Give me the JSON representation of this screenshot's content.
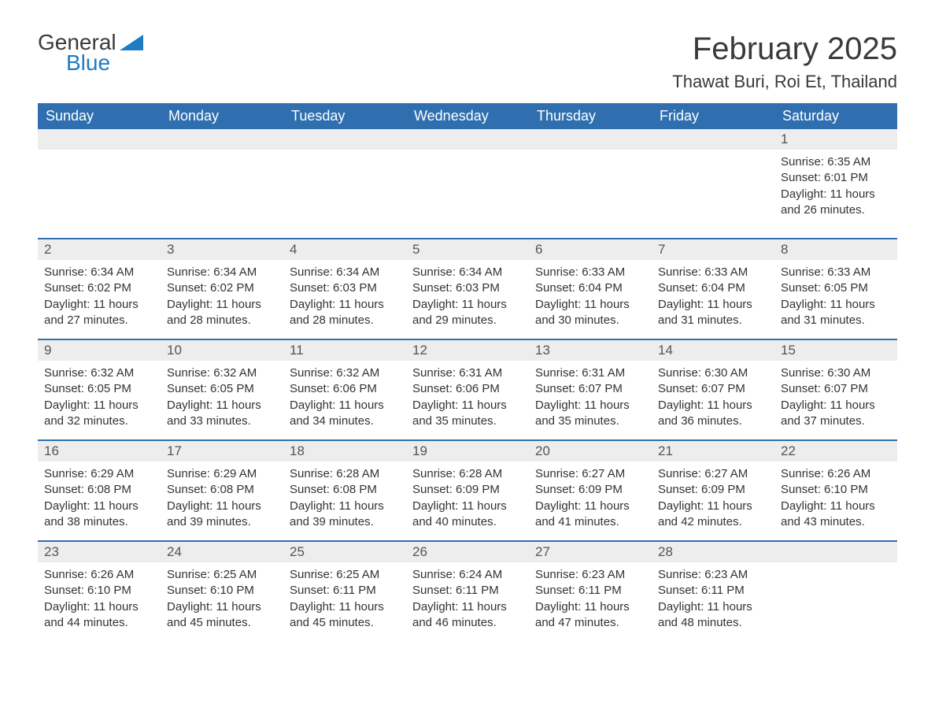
{
  "brand": {
    "line1": "General",
    "line2": "Blue",
    "accent_color": "#1f7bc2"
  },
  "title": "February 2025",
  "location": "Thawat Buri, Roi Et, Thailand",
  "colors": {
    "header_bg": "#2f6fb0",
    "header_text": "#ffffff",
    "row_separator": "#2f6fb0",
    "daynum_bg": "#ededed",
    "body_text": "#333333",
    "page_bg": "#ffffff"
  },
  "typography": {
    "month_title_size_pt": 30,
    "location_size_pt": 16,
    "dayname_size_pt": 14,
    "daynum_size_pt": 13,
    "cell_size_pt": 11
  },
  "day_names": [
    "Sunday",
    "Monday",
    "Tuesday",
    "Wednesday",
    "Thursday",
    "Friday",
    "Saturday"
  ],
  "labels": {
    "sunrise": "Sunrise:",
    "sunset": "Sunset:",
    "daylight": "Daylight:"
  },
  "layout": {
    "columns": 7,
    "weeks": 5,
    "first_day_column_index": 6,
    "days_in_month": 28
  },
  "days": [
    {
      "n": 1,
      "sunrise": "6:35 AM",
      "sunset": "6:01 PM",
      "daylight": "11 hours and 26 minutes."
    },
    {
      "n": 2,
      "sunrise": "6:34 AM",
      "sunset": "6:02 PM",
      "daylight": "11 hours and 27 minutes."
    },
    {
      "n": 3,
      "sunrise": "6:34 AM",
      "sunset": "6:02 PM",
      "daylight": "11 hours and 28 minutes."
    },
    {
      "n": 4,
      "sunrise": "6:34 AM",
      "sunset": "6:03 PM",
      "daylight": "11 hours and 28 minutes."
    },
    {
      "n": 5,
      "sunrise": "6:34 AM",
      "sunset": "6:03 PM",
      "daylight": "11 hours and 29 minutes."
    },
    {
      "n": 6,
      "sunrise": "6:33 AM",
      "sunset": "6:04 PM",
      "daylight": "11 hours and 30 minutes."
    },
    {
      "n": 7,
      "sunrise": "6:33 AM",
      "sunset": "6:04 PM",
      "daylight": "11 hours and 31 minutes."
    },
    {
      "n": 8,
      "sunrise": "6:33 AM",
      "sunset": "6:05 PM",
      "daylight": "11 hours and 31 minutes."
    },
    {
      "n": 9,
      "sunrise": "6:32 AM",
      "sunset": "6:05 PM",
      "daylight": "11 hours and 32 minutes."
    },
    {
      "n": 10,
      "sunrise": "6:32 AM",
      "sunset": "6:05 PM",
      "daylight": "11 hours and 33 minutes."
    },
    {
      "n": 11,
      "sunrise": "6:32 AM",
      "sunset": "6:06 PM",
      "daylight": "11 hours and 34 minutes."
    },
    {
      "n": 12,
      "sunrise": "6:31 AM",
      "sunset": "6:06 PM",
      "daylight": "11 hours and 35 minutes."
    },
    {
      "n": 13,
      "sunrise": "6:31 AM",
      "sunset": "6:07 PM",
      "daylight": "11 hours and 35 minutes."
    },
    {
      "n": 14,
      "sunrise": "6:30 AM",
      "sunset": "6:07 PM",
      "daylight": "11 hours and 36 minutes."
    },
    {
      "n": 15,
      "sunrise": "6:30 AM",
      "sunset": "6:07 PM",
      "daylight": "11 hours and 37 minutes."
    },
    {
      "n": 16,
      "sunrise": "6:29 AM",
      "sunset": "6:08 PM",
      "daylight": "11 hours and 38 minutes."
    },
    {
      "n": 17,
      "sunrise": "6:29 AM",
      "sunset": "6:08 PM",
      "daylight": "11 hours and 39 minutes."
    },
    {
      "n": 18,
      "sunrise": "6:28 AM",
      "sunset": "6:08 PM",
      "daylight": "11 hours and 39 minutes."
    },
    {
      "n": 19,
      "sunrise": "6:28 AM",
      "sunset": "6:09 PM",
      "daylight": "11 hours and 40 minutes."
    },
    {
      "n": 20,
      "sunrise": "6:27 AM",
      "sunset": "6:09 PM",
      "daylight": "11 hours and 41 minutes."
    },
    {
      "n": 21,
      "sunrise": "6:27 AM",
      "sunset": "6:09 PM",
      "daylight": "11 hours and 42 minutes."
    },
    {
      "n": 22,
      "sunrise": "6:26 AM",
      "sunset": "6:10 PM",
      "daylight": "11 hours and 43 minutes."
    },
    {
      "n": 23,
      "sunrise": "6:26 AM",
      "sunset": "6:10 PM",
      "daylight": "11 hours and 44 minutes."
    },
    {
      "n": 24,
      "sunrise": "6:25 AM",
      "sunset": "6:10 PM",
      "daylight": "11 hours and 45 minutes."
    },
    {
      "n": 25,
      "sunrise": "6:25 AM",
      "sunset": "6:11 PM",
      "daylight": "11 hours and 45 minutes."
    },
    {
      "n": 26,
      "sunrise": "6:24 AM",
      "sunset": "6:11 PM",
      "daylight": "11 hours and 46 minutes."
    },
    {
      "n": 27,
      "sunrise": "6:23 AM",
      "sunset": "6:11 PM",
      "daylight": "11 hours and 47 minutes."
    },
    {
      "n": 28,
      "sunrise": "6:23 AM",
      "sunset": "6:11 PM",
      "daylight": "11 hours and 48 minutes."
    }
  ]
}
